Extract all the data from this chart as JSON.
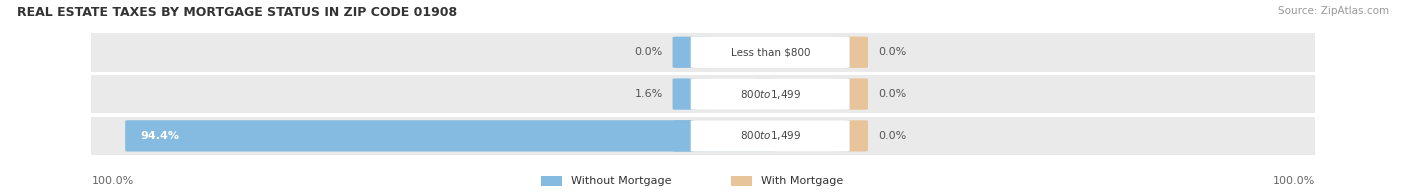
{
  "title": "REAL ESTATE TAXES BY MORTGAGE STATUS IN ZIP CODE 01908",
  "source": "Source: ZipAtlas.com",
  "rows": [
    {
      "label": "Less than $800",
      "without_mortgage": 0.0,
      "with_mortgage": 0.0
    },
    {
      "label": "$800 to $1,499",
      "without_mortgage": 1.6,
      "with_mortgage": 0.0
    },
    {
      "label": "$800 to $1,499",
      "without_mortgage": 94.4,
      "with_mortgage": 0.0
    }
  ],
  "x_max": 100.0,
  "color_without": "#85BBE0",
  "color_with": "#E8C49A",
  "row_bg_color": "#EAEAEA",
  "label_box_color": "#FFFFFF",
  "label_text_color": "#444444",
  "title_color": "#333333",
  "pct_text_color": "#555555",
  "axis_label_color": "#666666",
  "legend_without_label": "Without Mortgage",
  "legend_with_label": "With Mortgage",
  "figsize": [
    14.06,
    1.96
  ],
  "dpi": 100
}
